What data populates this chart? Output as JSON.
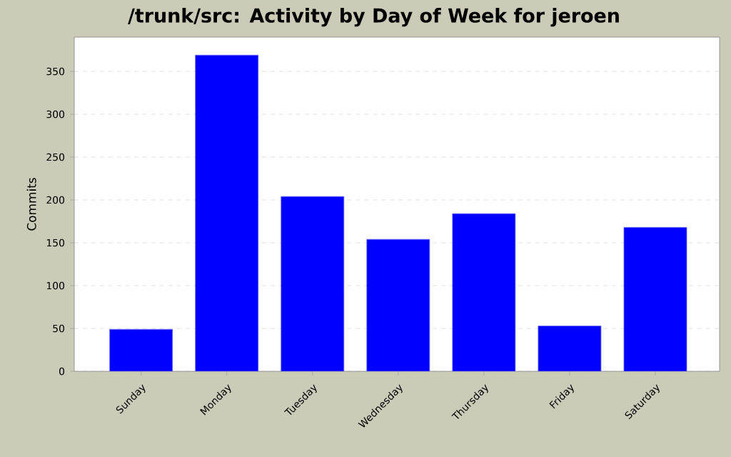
{
  "chart_data": {
    "type": "bar",
    "title": "/trunk/src: Activity by Day of Week for jeroen",
    "ylabel": "Commits",
    "categories": [
      "Sunday",
      "Monday",
      "Tuesday",
      "Wednesday",
      "Thursday",
      "Friday",
      "Saturday"
    ],
    "values": [
      49,
      369,
      204,
      154,
      184,
      53,
      168
    ],
    "color": "#0000ff",
    "ylim": [
      0,
      390
    ],
    "yticks": [
      0,
      50,
      100,
      150,
      200,
      250,
      300,
      350
    ],
    "grid": "y"
  }
}
